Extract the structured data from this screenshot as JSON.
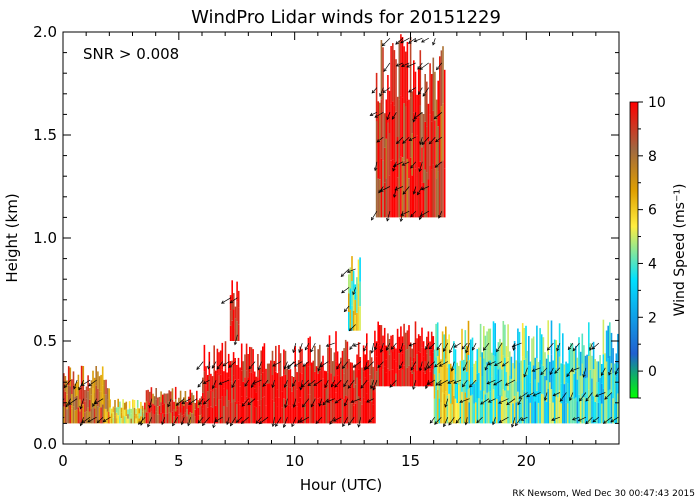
{
  "chart_data": {
    "type": "heatmap",
    "title": "WindPro Lidar winds for 20151229",
    "annotation": "SNR > 0.008",
    "xlabel": "Hour (UTC)",
    "ylabel": "Height (km)",
    "xlim": [
      0,
      24
    ],
    "ylim": [
      0,
      2
    ],
    "x_ticks": [
      0,
      5,
      10,
      15,
      20
    ],
    "x_tick_labels": [
      "0",
      "5",
      "10",
      "15",
      "20"
    ],
    "y_ticks": [
      0,
      0.5,
      1,
      1.5,
      2
    ],
    "y_tick_labels": [
      "0.0",
      "0.5",
      "1.0",
      "1.5",
      "2.0"
    ],
    "colorbar": {
      "label": "Wind Speed (ms⁻¹)",
      "range": [
        -1,
        10
      ],
      "ticks": [
        0,
        2,
        4,
        6,
        8,
        10
      ],
      "tick_labels": [
        "0",
        "2",
        "4",
        "6",
        "8",
        "10"
      ],
      "stops": [
        "#00ff00",
        "#2060d0",
        "#00e0ff",
        "#ffee40",
        "#e0a000",
        "#a06840",
        "#ff0000"
      ]
    },
    "footer": "RK Newsom, Wed Dec 30 00:47:43 2015",
    "regions": [
      {
        "x": [
          0.0,
          2.0
        ],
        "y": [
          0.1,
          0.38
        ],
        "speed": 8
      },
      {
        "x": [
          2.0,
          3.5
        ],
        "y": [
          0.1,
          0.22
        ],
        "speed": 6
      },
      {
        "x": [
          3.5,
          6.0
        ],
        "y": [
          0.1,
          0.28
        ],
        "speed": 9
      },
      {
        "x": [
          6.0,
          10.0
        ],
        "y": [
          0.1,
          0.5
        ],
        "speed": 10
      },
      {
        "x": [
          10.0,
          13.5
        ],
        "y": [
          0.1,
          0.55
        ],
        "speed": 10
      },
      {
        "x": [
          13.5,
          16.0
        ],
        "y": [
          0.28,
          0.6
        ],
        "speed": 10
      },
      {
        "x": [
          16.0,
          17.5
        ],
        "y": [
          0.1,
          0.6
        ],
        "speed": 5
      },
      {
        "x": [
          17.5,
          20.0
        ],
        "y": [
          0.1,
          0.6
        ],
        "speed": 4
      },
      {
        "x": [
          20.0,
          24.0
        ],
        "y": [
          0.1,
          0.62
        ],
        "speed": 3.5
      },
      {
        "x": [
          12.3,
          12.8
        ],
        "y": [
          0.55,
          0.95
        ],
        "speed": 5
      },
      {
        "x": [
          7.2,
          7.6
        ],
        "y": [
          0.5,
          0.8
        ],
        "speed": 10
      },
      {
        "x": [
          13.5,
          16.5
        ],
        "y": [
          1.1,
          2.0
        ],
        "speed": 9
      }
    ]
  }
}
